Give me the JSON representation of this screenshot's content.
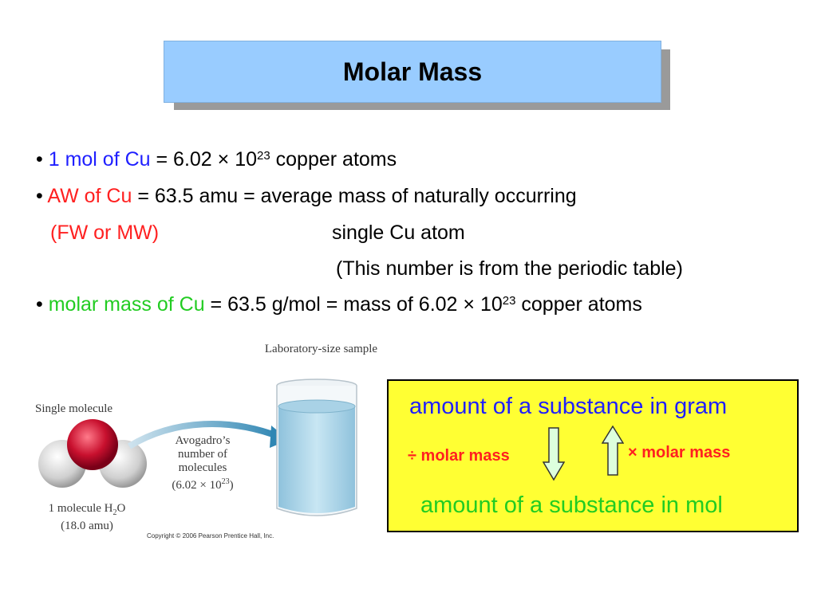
{
  "title": "Molar Mass",
  "bullet": "•",
  "line1": {
    "part1": "1 mol of  Cu",
    "part2": "  =  6.02 × 10",
    "sup": "23",
    "part3": " copper atoms"
  },
  "line2": {
    "part1": "AW of Cu",
    "part2": " = 63.5 amu  = average mass of naturally occurring"
  },
  "line3": {
    "left": "(FW or MW)",
    "right": "single Cu atom"
  },
  "line4": "(This number is from the periodic table)",
  "line5": {
    "part1": "molar mass of Cu",
    "part2": " = 63.5 g/mol = mass of 6.02 × 10",
    "sup": "23",
    "part3": " copper atoms"
  },
  "figure": {
    "lab_sample": "Laboratory-size sample",
    "single_molecule": "Single molecule",
    "avogadro_1": "Avogadro’s",
    "avogadro_2": "number of",
    "avogadro_3": "molecules",
    "avogadro_4": "(6.02 × 10",
    "avogadro_sup": "23",
    "avogadro_5": ")",
    "molecule_1a": "1 molecule H",
    "molecule_sub": "2",
    "molecule_1b": "O",
    "molecule_2": "(18.0 amu)",
    "copyright": "Copyright © 2006 Pearson Prentice Hall, Inc."
  },
  "box": {
    "top": "amount of a substance in gram",
    "divide": "÷ molar mass",
    "multiply": "× molar mass",
    "bottom": "amount of a substance in mol"
  },
  "colors": {
    "title_bg": "#99ccff",
    "blue": "#1f1fff",
    "red": "#ff2020",
    "green": "#22cc22",
    "box_bg": "#ffff33"
  }
}
